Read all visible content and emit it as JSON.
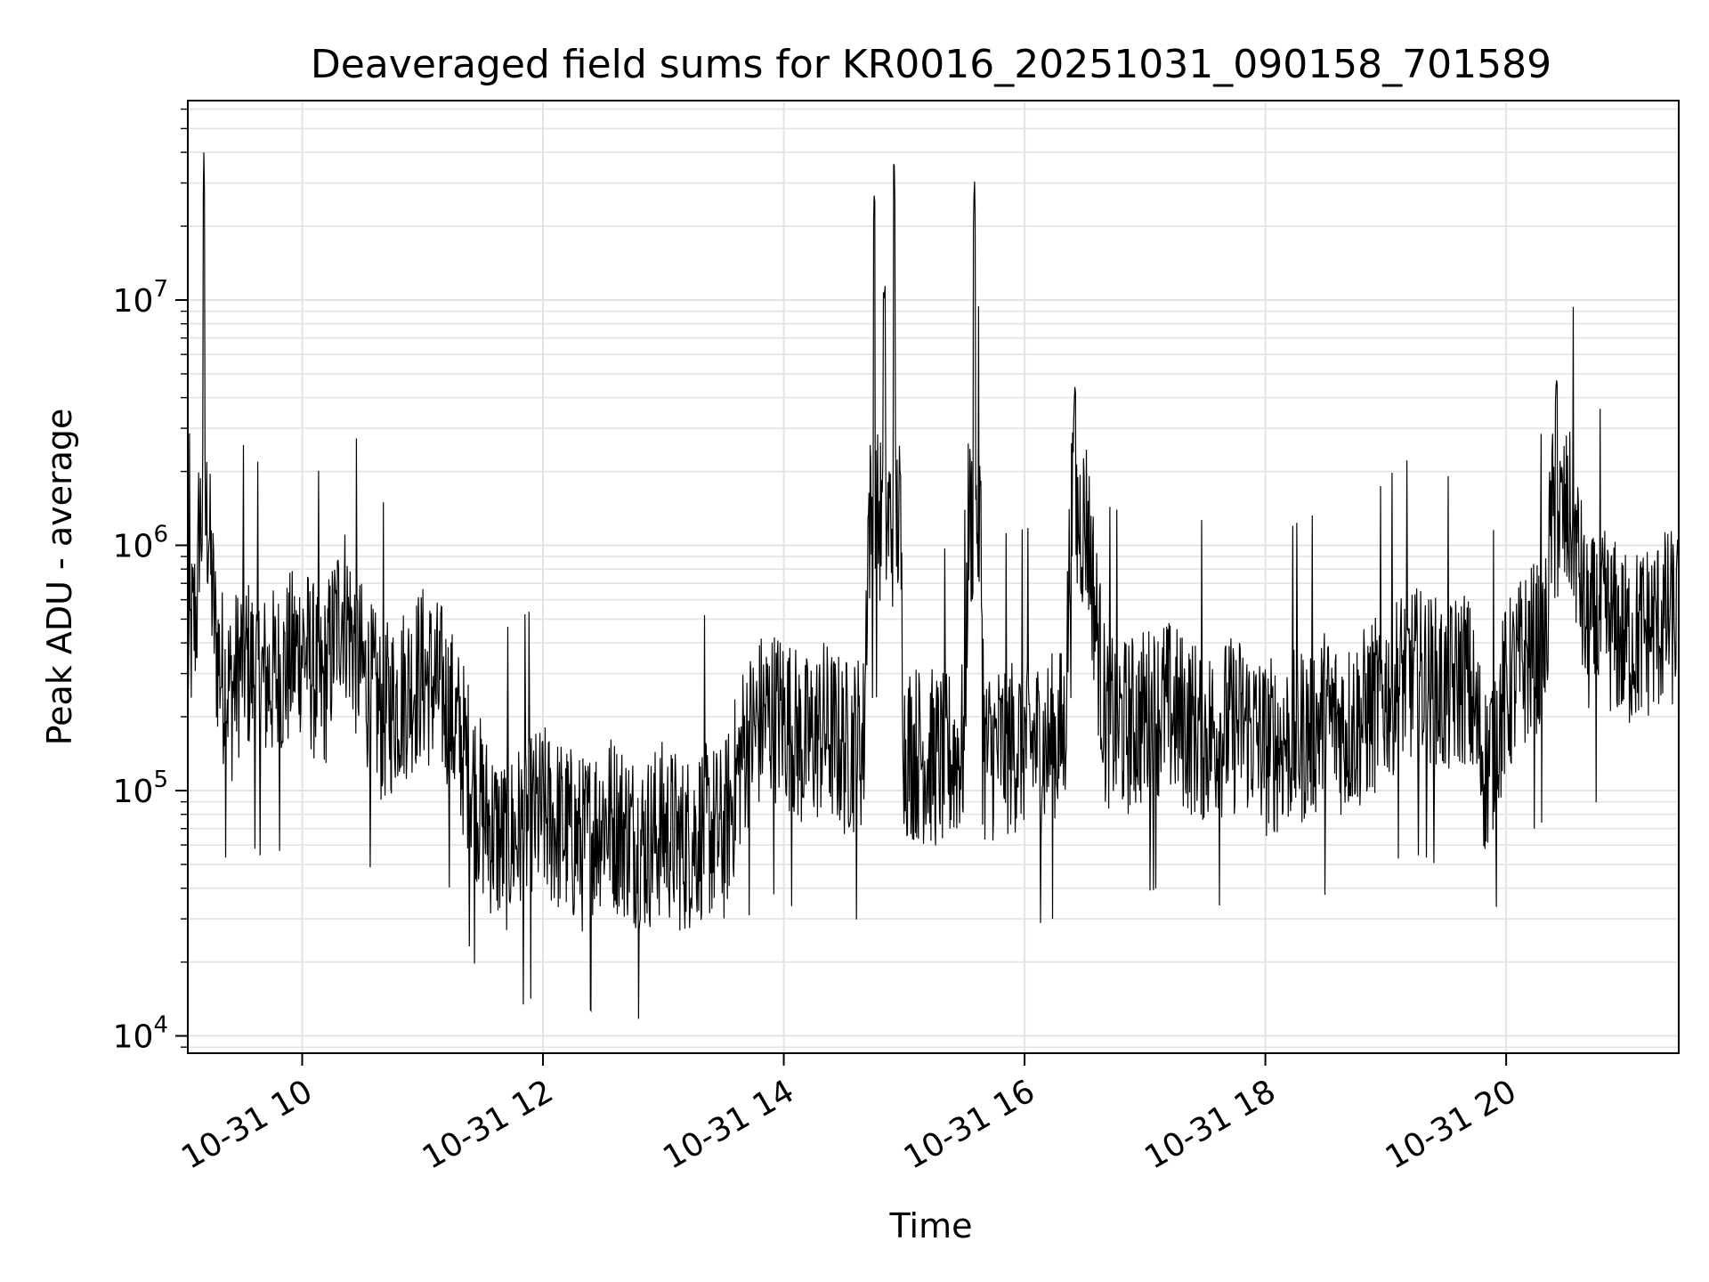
{
  "chart_data": {
    "type": "line",
    "title": "Deaveraged field sums for KR0016_20251031_090158_701589",
    "xlabel": "Time",
    "ylabel": "Peak ADU - average",
    "xlim": [
      "2025-10-31 09:03",
      "2025-10-31 21:26"
    ],
    "ylim": [
      8500,
      65000000
    ],
    "yscale": "log",
    "grid": true,
    "legend": "none",
    "line_color": "#000000",
    "x_ticks": [
      "10-31 10",
      "10-31 12",
      "10-31 14",
      "10-31 16",
      "10-31 18",
      "10-31 20"
    ],
    "y_ticks": [
      {
        "base": "10",
        "exp": "4"
      },
      {
        "base": "10",
        "exp": "5"
      },
      {
        "base": "10",
        "exp": "6"
      },
      {
        "base": "10",
        "exp": "7"
      }
    ],
    "series": [
      {
        "x": [
          "2025-10-31 09:03",
          "2025-10-31 09:08",
          "2025-10-31 09:11",
          "2025-10-31 09:14",
          "2025-10-31 09:17",
          "2025-10-31 09:20",
          "2025-10-31 09:25",
          "2025-10-31 09:30",
          "2025-10-31 09:40",
          "2025-10-31 09:50",
          "2025-10-31 10:00",
          "2025-10-31 10:10",
          "2025-10-31 10:20",
          "2025-10-31 10:30",
          "2025-10-31 10:40",
          "2025-10-31 10:50",
          "2025-10-31 11:00",
          "2025-10-31 11:10",
          "2025-10-31 11:20",
          "2025-10-31 11:30",
          "2025-10-31 11:40",
          "2025-10-31 11:50",
          "2025-10-31 12:00",
          "2025-10-31 12:10",
          "2025-10-31 12:20",
          "2025-10-31 12:30",
          "2025-10-31 12:40",
          "2025-10-31 12:50",
          "2025-10-31 13:00",
          "2025-10-31 13:10",
          "2025-10-31 13:20",
          "2025-10-31 13:30",
          "2025-10-31 13:40",
          "2025-10-31 13:50",
          "2025-10-31 14:00",
          "2025-10-31 14:10",
          "2025-10-31 14:20",
          "2025-10-31 14:30",
          "2025-10-31 14:40",
          "2025-10-31 14:45",
          "2025-10-31 14:50",
          "2025-10-31 14:55",
          "2025-10-31 15:00",
          "2025-10-31 15:10",
          "2025-10-31 15:20",
          "2025-10-31 15:30",
          "2025-10-31 15:35",
          "2025-10-31 15:40",
          "2025-10-31 15:50",
          "2025-10-31 16:00",
          "2025-10-31 16:10",
          "2025-10-31 16:20",
          "2025-10-31 16:25",
          "2025-10-31 16:40",
          "2025-10-31 16:50",
          "2025-10-31 17:00",
          "2025-10-31 17:10",
          "2025-10-31 17:20",
          "2025-10-31 17:30",
          "2025-10-31 17:40",
          "2025-10-31 17:50",
          "2025-10-31 18:00",
          "2025-10-31 18:10",
          "2025-10-31 18:20",
          "2025-10-31 18:30",
          "2025-10-31 18:40",
          "2025-10-31 18:50",
          "2025-10-31 19:00",
          "2025-10-31 19:10",
          "2025-10-31 19:20",
          "2025-10-31 19:30",
          "2025-10-31 19:40",
          "2025-10-31 19:50",
          "2025-10-31 20:00",
          "2025-10-31 20:10",
          "2025-10-31 20:20",
          "2025-10-31 20:25",
          "2025-10-31 20:40",
          "2025-10-31 20:50",
          "2025-10-31 21:00",
          "2025-10-31 21:10",
          "2025-10-31 21:20",
          "2025-10-31 21:26"
        ],
        "y": [
          350000,
          600000,
          40000000,
          900000,
          400000,
          300000,
          250000,
          350000,
          280000,
          300000,
          400000,
          250000,
          600000,
          300000,
          200000,
          250000,
          300000,
          250000,
          150000,
          80000,
          60000,
          70000,
          80000,
          70000,
          60000,
          80000,
          70000,
          60000,
          70000,
          60000,
          70000,
          65000,
          150000,
          200000,
          200000,
          150000,
          180000,
          150000,
          160000,
          27000000,
          10000000,
          38000000,
          150000,
          140000,
          130000,
          150000,
          33000000,
          140000,
          150000,
          160000,
          150000,
          170000,
          4500000,
          200000,
          180000,
          200000,
          220000,
          190000,
          170000,
          180000,
          190000,
          150000,
          160000,
          170000,
          200000,
          180000,
          200000,
          250000,
          300000,
          280000,
          250000,
          300000,
          120000,
          250000,
          350000,
          400000,
          4800000,
          450000,
          500000,
          400000,
          450000,
          500000,
          500000
        ]
      }
    ]
  }
}
